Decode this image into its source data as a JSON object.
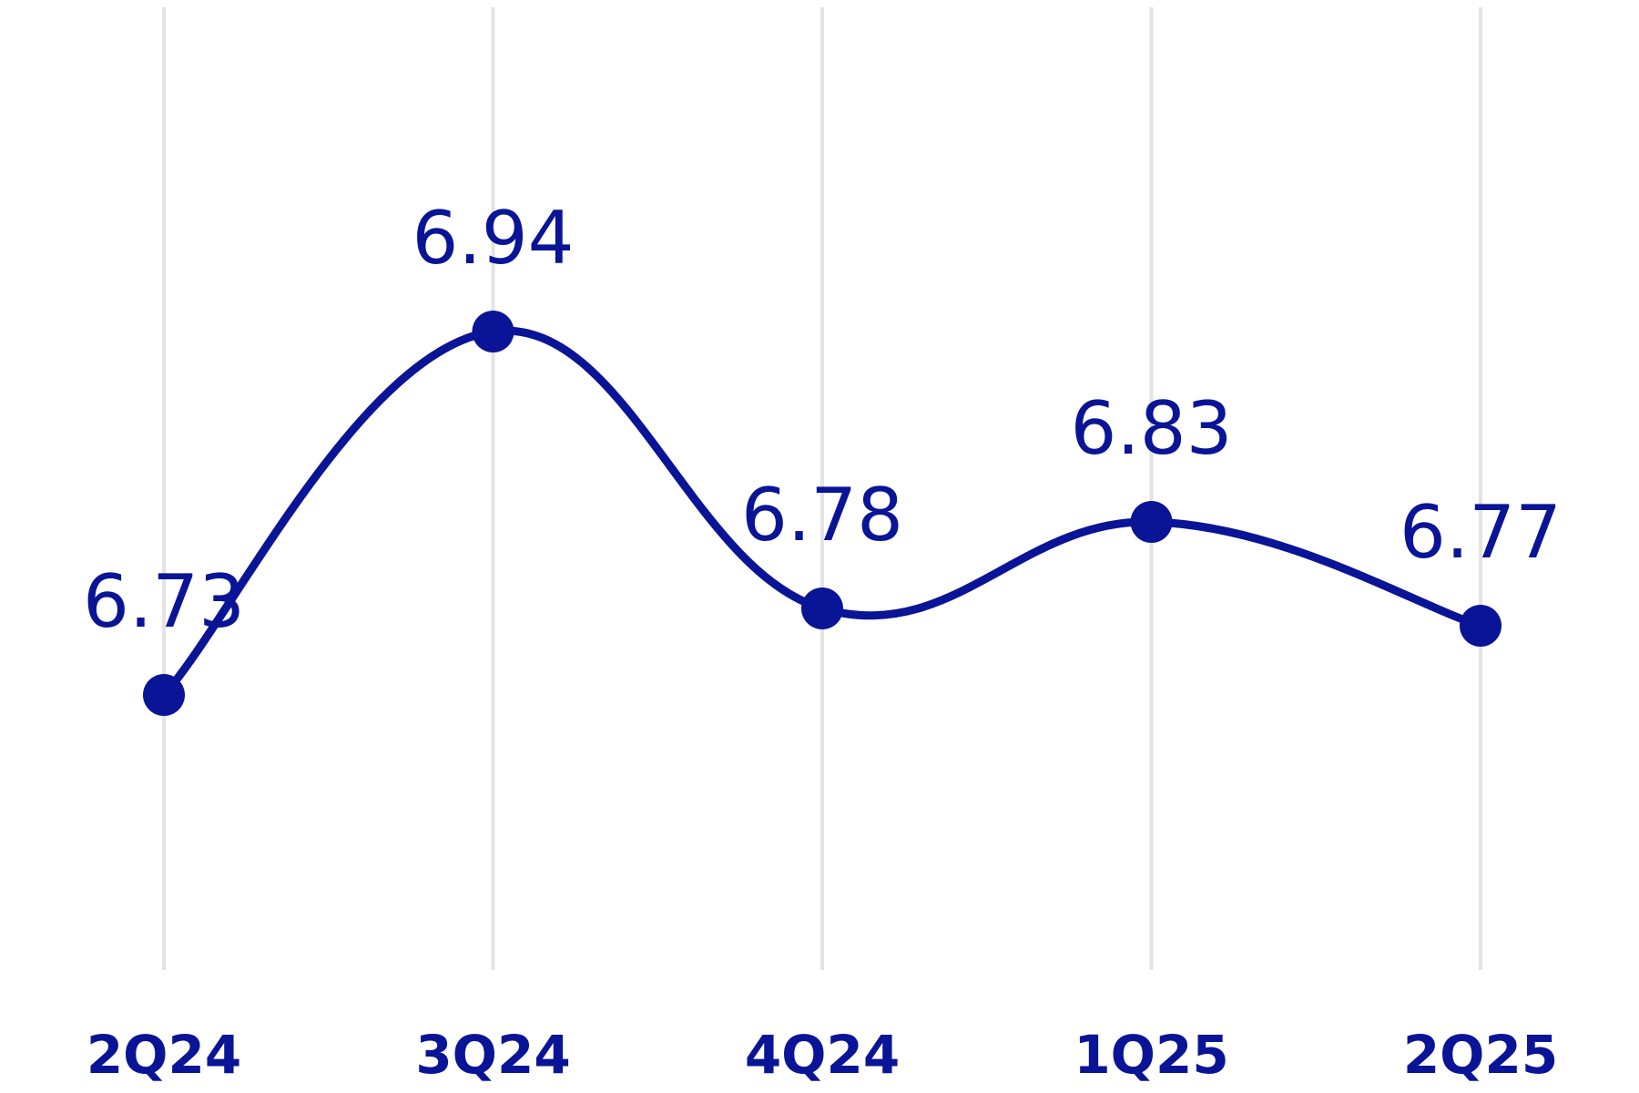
{
  "chart_data": {
    "type": "line",
    "title": "",
    "xlabel": "",
    "ylabel": "",
    "categories": [
      "2Q24",
      "3Q24",
      "4Q24",
      "1Q25",
      "2Q25"
    ],
    "series": [
      {
        "values": [
          6.73,
          6.94,
          6.78,
          6.83,
          6.77
        ],
        "data_labels": [
          "6.73",
          "6.94",
          "6.78",
          "6.83",
          "6.77"
        ]
      }
    ],
    "ylim": [
      6.6,
      7.05
    ],
    "grid": "vertical",
    "legend": "none",
    "smooth": true,
    "colors": {
      "series": "#0a1496",
      "grid": "#e3e3e3",
      "text": "#0a1496"
    }
  }
}
